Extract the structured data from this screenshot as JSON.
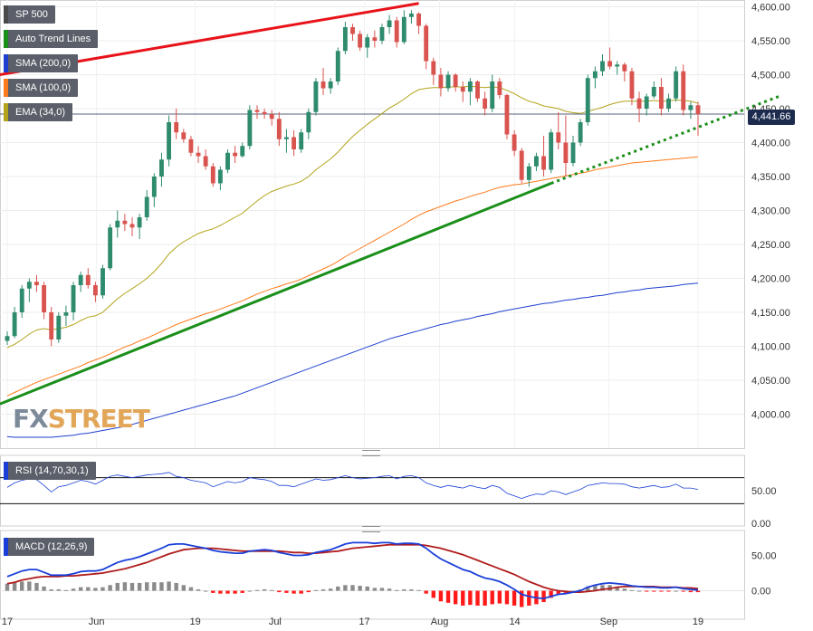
{
  "legend": [
    {
      "label": "SP 500",
      "color": "#4a4a4a"
    },
    {
      "label": "Auto Trend Lines",
      "color": "#1a8f1a"
    },
    {
      "label": "SMA (200,0)",
      "color": "#1e3fcf"
    },
    {
      "label": "SMA (100,0)",
      "color": "#ff7a1a"
    },
    {
      "label": "EMA (34,0)",
      "color": "#b3a31a"
    }
  ],
  "rsi_label": "RSI (14,70,30,1)",
  "macd_label": "MACD (12,26,9)",
  "watermark": {
    "part1": "FX",
    "part2": "STREET"
  },
  "last_price_label": "4,441.66",
  "colors": {
    "up": "#2e8b6e",
    "down": "#d9534f",
    "ema34": "#b3a31a",
    "sma100": "#ff7a1a",
    "sma200": "#1e3fcf",
    "trend_red": "#e8131a",
    "trend_green": "#1a8f1a",
    "macd_line": "#1a3fd9",
    "signal_line": "#b01c1c"
  },
  "chart_data": {
    "type": "candlestick",
    "price_axis": {
      "ylim": [
        3950,
        4610
      ],
      "ticks": [
        "4,600.00",
        "4,550.00",
        "4,500.00",
        "4,450.00",
        "4,400.00",
        "4,350.00",
        "4,300.00",
        "4,250.00",
        "4,200.00",
        "4,150.00",
        "4,100.00",
        "4,050.00",
        "4,000.00"
      ]
    },
    "rsi_axis": {
      "ylim": [
        0,
        100
      ],
      "ticks": [
        "50.00",
        "0.00"
      ],
      "levels": [
        70,
        30
      ]
    },
    "macd_axis": {
      "ylim": [
        -30,
        80
      ],
      "ticks": [
        "50.00",
        "0.00"
      ]
    },
    "x_ticks": [
      "17",
      "Jun",
      "19",
      "Jul",
      "17",
      "Aug",
      "14",
      "Sep",
      "19"
    ],
    "candles": [
      [
        4108,
        4122,
        4102,
        4115
      ],
      [
        4115,
        4158,
        4112,
        4150
      ],
      [
        4150,
        4190,
        4142,
        4185
      ],
      [
        4185,
        4200,
        4165,
        4195
      ],
      [
        4195,
        4205,
        4180,
        4190
      ],
      [
        4190,
        4195,
        4140,
        4150
      ],
      [
        4150,
        4158,
        4100,
        4110
      ],
      [
        4110,
        4150,
        4105,
        4145
      ],
      [
        4145,
        4160,
        4130,
        4150
      ],
      [
        4150,
        4195,
        4138,
        4190
      ],
      [
        4190,
        4210,
        4180,
        4205
      ],
      [
        4205,
        4215,
        4185,
        4190
      ],
      [
        4190,
        4195,
        4165,
        4175
      ],
      [
        4175,
        4220,
        4170,
        4215
      ],
      [
        4215,
        4280,
        4212,
        4275
      ],
      [
        4275,
        4300,
        4260,
        4285
      ],
      [
        4285,
        4295,
        4270,
        4280
      ],
      [
        4280,
        4290,
        4262,
        4275
      ],
      [
        4275,
        4295,
        4258,
        4290
      ],
      [
        4290,
        4330,
        4285,
        4320
      ],
      [
        4320,
        4355,
        4305,
        4350
      ],
      [
        4350,
        4385,
        4335,
        4375
      ],
      [
        4375,
        4440,
        4365,
        4430
      ],
      [
        4430,
        4450,
        4405,
        4415
      ],
      [
        4415,
        4420,
        4400,
        4405
      ],
      [
        4405,
        4410,
        4380,
        4385
      ],
      [
        4385,
        4395,
        4370,
        4380
      ],
      [
        4380,
        4390,
        4360,
        4365
      ],
      [
        4365,
        4370,
        4335,
        4340
      ],
      [
        4340,
        4365,
        4330,
        4360
      ],
      [
        4360,
        4390,
        4355,
        4385
      ],
      [
        4385,
        4395,
        4370,
        4380
      ],
      [
        4380,
        4400,
        4378,
        4395
      ],
      [
        4395,
        4455,
        4390,
        4448
      ],
      [
        4448,
        4455,
        4435,
        4445
      ],
      [
        4445,
        4450,
        4435,
        4442
      ],
      [
        4442,
        4448,
        4425,
        4435
      ],
      [
        4435,
        4445,
        4395,
        4405
      ],
      [
        4405,
        4420,
        4385,
        4408
      ],
      [
        4408,
        4418,
        4380,
        4390
      ],
      [
        4390,
        4420,
        4385,
        4415
      ],
      [
        4415,
        4450,
        4405,
        4445
      ],
      [
        4445,
        4495,
        4440,
        4490
      ],
      [
        4490,
        4510,
        4470,
        4480
      ],
      [
        4480,
        4495,
        4472,
        4490
      ],
      [
        4490,
        4540,
        4485,
        4535
      ],
      [
        4535,
        4578,
        4530,
        4570
      ],
      [
        4570,
        4575,
        4550,
        4560
      ],
      [
        4560,
        4565,
        4535,
        4540
      ],
      [
        4540,
        4560,
        4525,
        4555
      ],
      [
        4555,
        4565,
        4540,
        4550
      ],
      [
        4550,
        4575,
        4545,
        4570
      ],
      [
        4570,
        4588,
        4560,
        4580
      ],
      [
        4580,
        4585,
        4540,
        4548
      ],
      [
        4548,
        4595,
        4545,
        4585
      ],
      [
        4585,
        4595,
        4575,
        4590
      ],
      [
        4590,
        4592,
        4560,
        4572
      ],
      [
        4572,
        4575,
        4508,
        4520
      ],
      [
        4520,
        4525,
        4485,
        4500
      ],
      [
        4500,
        4510,
        4468,
        4480
      ],
      [
        4480,
        4505,
        4475,
        4500
      ],
      [
        4500,
        4502,
        4475,
        4482
      ],
      [
        4482,
        4490,
        4460,
        4475
      ],
      [
        4475,
        4495,
        4455,
        4490
      ],
      [
        4490,
        4492,
        4460,
        4465
      ],
      [
        4465,
        4475,
        4440,
        4450
      ],
      [
        4450,
        4500,
        4445,
        4490
      ],
      [
        4490,
        4495,
        4465,
        4470
      ],
      [
        4470,
        4472,
        4405,
        4412
      ],
      [
        4412,
        4418,
        4380,
        4388
      ],
      [
        4388,
        4392,
        4340,
        4345
      ],
      [
        4345,
        4370,
        4335,
        4365
      ],
      [
        4365,
        4385,
        4358,
        4380
      ],
      [
        4380,
        4410,
        4350,
        4360
      ],
      [
        4360,
        4420,
        4355,
        4415
      ],
      [
        4415,
        4445,
        4390,
        4400
      ],
      [
        4400,
        4440,
        4350,
        4370
      ],
      [
        4370,
        4410,
        4365,
        4400
      ],
      [
        4400,
        4435,
        4395,
        4430
      ],
      [
        4430,
        4500,
        4425,
        4495
      ],
      [
        4495,
        4512,
        4480,
        4505
      ],
      [
        4505,
        4530,
        4498,
        4520
      ],
      [
        4520,
        4540,
        4508,
        4512
      ],
      [
        4512,
        4520,
        4500,
        4515
      ],
      [
        4515,
        4518,
        4490,
        4505
      ],
      [
        4505,
        4510,
        4455,
        4465
      ],
      [
        4465,
        4475,
        4430,
        4450
      ],
      [
        4450,
        4472,
        4440,
        4468
      ],
      [
        4468,
        4490,
        4465,
        4482
      ],
      [
        4482,
        4495,
        4440,
        4450
      ],
      [
        4450,
        4472,
        4445,
        4465
      ],
      [
        4465,
        4512,
        4460,
        4505
      ],
      [
        4505,
        4515,
        4440,
        4448
      ],
      [
        4448,
        4460,
        4435,
        4455
      ],
      [
        4455,
        4460,
        4410,
        4442
      ]
    ],
    "ema34": [
      4098,
      4103,
      4110,
      4118,
      4124,
      4126,
      4124,
      4126,
      4128,
      4132,
      4138,
      4143,
      4145,
      4150,
      4160,
      4170,
      4178,
      4185,
      4192,
      4200,
      4210,
      4222,
      4236,
      4246,
      4254,
      4260,
      4266,
      4270,
      4273,
      4278,
      4284,
      4290,
      4296,
      4305,
      4314,
      4322,
      4328,
      4332,
      4336,
      4339,
      4343,
      4350,
      4360,
      4368,
      4376,
      4386,
      4398,
      4409,
      4418,
      4427,
      4435,
      4443,
      4451,
      4457,
      4464,
      4472,
      4478,
      4480,
      4481,
      4481,
      4482,
      4482,
      4482,
      4483,
      4482,
      4481,
      4482,
      4481,
      4477,
      4472,
      4466,
      4461,
      4458,
      4454,
      4452,
      4450,
      4446,
      4444,
      4443,
      4446,
      4449,
      4452,
      4456,
      4459,
      4461,
      4461,
      4461,
      4461,
      4462,
      4461,
      4461,
      4463,
      4462,
      4461,
      4458
    ],
    "sma100": [
      4027,
      4032,
      4037,
      4042,
      4047,
      4051,
      4055,
      4059,
      4063,
      4067,
      4071,
      4076,
      4080,
      4084,
      4089,
      4094,
      4099,
      4103,
      4108,
      4112,
      4117,
      4122,
      4127,
      4132,
      4136,
      4140,
      4144,
      4148,
      4151,
      4155,
      4159,
      4163,
      4167,
      4172,
      4177,
      4181,
      4185,
      4188,
      4192,
      4195,
      4199,
      4204,
      4209,
      4214,
      4219,
      4225,
      4232,
      4238,
      4244,
      4250,
      4256,
      4262,
      4268,
      4274,
      4280,
      4287,
      4293,
      4298,
      4302,
      4306,
      4310,
      4314,
      4317,
      4321,
      4324,
      4327,
      4331,
      4334,
      4336,
      4338,
      4339,
      4341,
      4343,
      4345,
      4347,
      4349,
      4351,
      4353,
      4355,
      4357,
      4360,
      4362,
      4364,
      4366,
      4368,
      4370,
      4371,
      4372,
      4373,
      4374,
      4375,
      4376,
      4377,
      4378,
      4379
    ],
    "sma200": [
      3967,
      3966,
      3966,
      3966,
      3966,
      3966,
      3966,
      3967,
      3968,
      3969,
      3971,
      3972,
      3974,
      3976,
      3978,
      3980,
      3982,
      3985,
      3988,
      3991,
      3994,
      3997,
      4000,
      4003,
      4006,
      4009,
      4012,
      4015,
      4018,
      4021,
      4024,
      4027,
      4031,
      4035,
      4039,
      4043,
      4047,
      4051,
      4055,
      4059,
      4063,
      4067,
      4071,
      4075,
      4079,
      4083,
      4087,
      4091,
      4095,
      4099,
      4103,
      4107,
      4111,
      4114,
      4117,
      4120,
      4123,
      4126,
      4129,
      4132,
      4134,
      4137,
      4139,
      4141,
      4144,
      4146,
      4148,
      4151,
      4153,
      4155,
      4157,
      4159,
      4161,
      4163,
      4164,
      4166,
      4168,
      4169,
      4171,
      4172,
      4174,
      4175,
      4177,
      4179,
      4180,
      4182,
      4183,
      4185,
      4186,
      4187,
      4188,
      4189,
      4191,
      4192,
      4193
    ],
    "rsi": [
      55,
      62,
      66,
      68,
      67,
      58,
      48,
      56,
      58,
      62,
      66,
      64,
      60,
      66,
      72,
      74,
      72,
      70,
      72,
      74,
      75,
      76,
      78,
      72,
      70,
      66,
      64,
      62,
      56,
      60,
      64,
      62,
      64,
      70,
      68,
      67,
      64,
      58,
      58,
      56,
      60,
      64,
      68,
      66,
      67,
      70,
      73,
      70,
      68,
      69,
      70,
      72,
      73,
      68,
      72,
      73,
      70,
      62,
      58,
      55,
      58,
      56,
      54,
      58,
      55,
      53,
      58,
      55,
      46,
      42,
      38,
      42,
      45,
      44,
      50,
      48,
      44,
      48,
      52,
      58,
      60,
      62,
      61,
      61,
      60,
      56,
      54,
      56,
      58,
      55,
      56,
      60,
      54,
      54,
      52
    ],
    "macd": [
      20,
      24,
      28,
      30,
      30,
      26,
      22,
      22,
      22,
      24,
      27,
      28,
      28,
      30,
      35,
      40,
      43,
      45,
      48,
      52,
      56,
      60,
      65,
      66,
      66,
      64,
      62,
      60,
      57,
      55,
      54,
      53,
      53,
      56,
      57,
      58,
      57,
      54,
      52,
      50,
      50,
      51,
      54,
      56,
      58,
      62,
      66,
      68,
      68,
      68,
      67,
      68,
      68,
      66,
      67,
      67,
      66,
      60,
      52,
      45,
      40,
      35,
      30,
      27,
      22,
      18,
      16,
      13,
      8,
      2,
      -5,
      -8,
      -10,
      -11,
      -8,
      -5,
      -4,
      -2,
      0,
      5,
      8,
      10,
      11,
      10,
      9,
      7,
      6,
      5,
      5,
      4,
      4,
      5,
      3,
      2,
      1
    ],
    "signal": [
      10,
      12,
      15,
      17,
      19,
      20,
      20,
      20,
      21,
      21,
      22,
      23,
      24,
      25,
      27,
      29,
      31,
      34,
      37,
      40,
      44,
      48,
      52,
      55,
      58,
      59,
      60,
      60,
      60,
      59,
      58,
      57,
      56,
      56,
      56,
      56,
      56,
      56,
      55,
      54,
      54,
      53,
      53,
      54,
      55,
      56,
      58,
      60,
      61,
      62,
      63,
      64,
      65,
      65,
      65,
      65,
      65,
      64,
      62,
      60,
      57,
      54,
      51,
      47,
      43,
      39,
      35,
      31,
      27,
      23,
      18,
      13,
      9,
      5,
      2,
      0,
      -1,
      -2,
      -2,
      -1,
      0,
      2,
      3,
      5,
      6,
      6,
      6,
      6,
      6,
      5,
      5,
      5,
      4,
      4,
      3
    ],
    "trend_lines": [
      {
        "name": "resistance",
        "style": "solid",
        "color": "#e8131a"
      },
      {
        "name": "support",
        "style": "solid-then-dotted",
        "color": "#1a8f1a"
      }
    ]
  }
}
